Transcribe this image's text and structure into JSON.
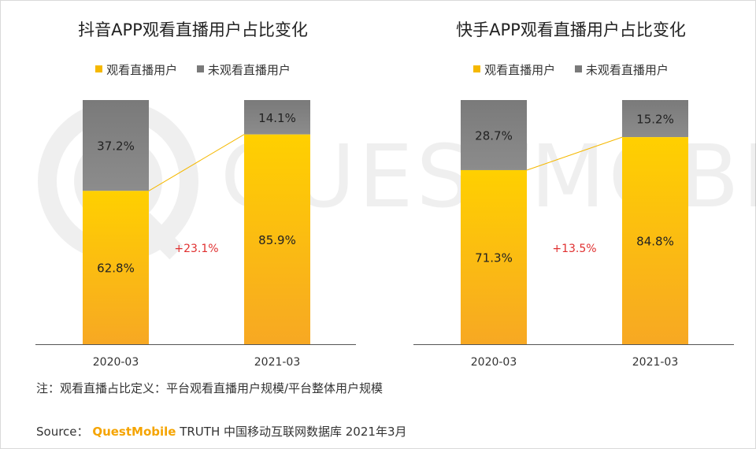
{
  "colors": {
    "watched": "#f5b800",
    "not_watched": "#7a7a7a",
    "delta": "#e03030",
    "connector": "#f5b800",
    "axis": "#555555"
  },
  "watermark": {
    "text": "QUESTMOBILE"
  },
  "chart_data": [
    {
      "type": "bar",
      "stacked": true,
      "title": "抖音APP观看直播用户占比变化",
      "categories": [
        "2020-03",
        "2021-03"
      ],
      "series": [
        {
          "name": "观看直播用户",
          "values": [
            62.8,
            85.9
          ],
          "labels": [
            "62.8%",
            "85.9%"
          ]
        },
        {
          "name": "未观看直播用户",
          "values": [
            37.2,
            14.1
          ],
          "labels": [
            "37.2%",
            "14.1%"
          ]
        }
      ],
      "delta_label": "+23.1%",
      "ylim": [
        0,
        100
      ],
      "legend_position": "top"
    },
    {
      "type": "bar",
      "stacked": true,
      "title": "快手APP观看直播用户占比变化",
      "categories": [
        "2020-03",
        "2021-03"
      ],
      "series": [
        {
          "name": "观看直播用户",
          "values": [
            71.3,
            84.8
          ],
          "labels": [
            "71.3%",
            "84.8%"
          ]
        },
        {
          "name": "未观看直播用户",
          "values": [
            28.7,
            15.2
          ],
          "labels": [
            "28.7%",
            "15.2%"
          ]
        }
      ],
      "delta_label": "+13.5%",
      "ylim": [
        0,
        100
      ],
      "legend_position": "top"
    }
  ],
  "note": "注：观看直播占比定义：平台观看直播用户规模/平台整体用户规模",
  "source": {
    "prefix": "Source：",
    "brand": "QuestMobile",
    "rest": " TRUTH 中国移动互联网数据库 2021年3月"
  }
}
